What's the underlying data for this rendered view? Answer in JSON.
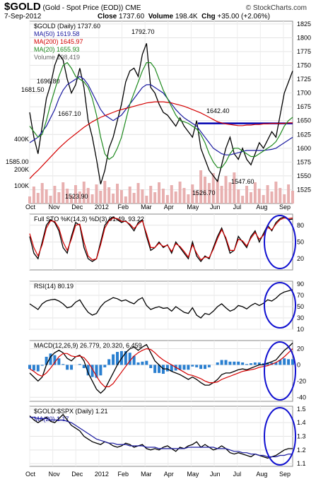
{
  "header": {
    "ticker": "$GOLD",
    "subtitle": "(Gold - Spot Price (EOD)) CME",
    "date": "7-Sep-2012",
    "close_label": "Close",
    "close": "1737.60",
    "volume_label": "Volume",
    "volume": "198.4K",
    "chg_label": "Chg",
    "chg": "+35.00 (+2.06%)",
    "brand": "© StockCharts.com"
  },
  "colors": {
    "price": "#000000",
    "ma50": "#1a1aa0",
    "ma200": "#d40000",
    "ma20": "#1f8a1f",
    "volume": "#e8b0b0",
    "circle": "#1010d0",
    "hline": "#0000b0",
    "macd_hist": "#2a7fd0"
  },
  "x_axis": [
    "Oct",
    "Nov",
    "Dec",
    "2012",
    "Feb",
    "Mar",
    "Apr",
    "May",
    "Jun",
    "Jul",
    "Aug",
    "Sep"
  ],
  "chart_data": [
    {
      "type": "line",
      "panel": "price",
      "legend": [
        {
          "key": "price",
          "text": "$GOLD (Daily) 1737.60"
        },
        {
          "key": "ma50",
          "text": "MA(50) 1619.58"
        },
        {
          "key": "ma200",
          "text": "MA(200) 1645.97"
        },
        {
          "key": "ma20",
          "text": "MA(20) 1655.93"
        },
        {
          "key": "volume",
          "text": "Volume 198,419"
        }
      ],
      "ylim": [
        1500,
        1830
      ],
      "yticks": [
        "1825",
        "1800",
        "1775",
        "1750",
        "1725",
        "1700",
        "1675",
        "1650",
        "1625",
        "1600",
        "1575",
        "1550",
        "1525"
      ],
      "volume_ticks": [
        "400K",
        "200K",
        "100K"
      ],
      "annotations": [
        "1792.70",
        "1696.80",
        "1681.50",
        "1667.10",
        "1642.40",
        "1585.00",
        "1523.90",
        "1526.70",
        "1547.60"
      ],
      "support_level": 1645,
      "series": [
        {
          "name": "$GOLD",
          "values": [
            1665,
            1620,
            1590,
            1640,
            1690,
            1715,
            1750,
            1770,
            1760,
            1725,
            1700,
            1715,
            1745,
            1710,
            1650,
            1620,
            1580,
            1535,
            1560,
            1600,
            1620,
            1650,
            1680,
            1720,
            1740,
            1745,
            1730,
            1770,
            1790,
            1710,
            1700,
            1680,
            1665,
            1660,
            1650,
            1640,
            1655,
            1640,
            1630,
            1620,
            1650,
            1600,
            1580,
            1560,
            1550,
            1540,
            1570,
            1600,
            1620,
            1590,
            1580,
            1600,
            1580,
            1570,
            1590,
            1610,
            1600,
            1615,
            1630,
            1620,
            1660,
            1700,
            1720,
            1740
          ]
        },
        {
          "name": "MA(50)",
          "values": [
            1610,
            1615,
            1620,
            1630,
            1640,
            1655,
            1670,
            1690,
            1705,
            1715,
            1720,
            1725,
            1730,
            1725,
            1715,
            1700,
            1685,
            1670,
            1660,
            1655,
            1650,
            1655,
            1660,
            1670,
            1680,
            1690,
            1700,
            1710,
            1715,
            1715,
            1710,
            1705,
            1700,
            1690,
            1680,
            1670,
            1662,
            1655,
            1650,
            1645,
            1640,
            1630,
            1620,
            1610,
            1600,
            1595,
            1590,
            1588,
            1588,
            1590,
            1592,
            1594,
            1596,
            1596,
            1596,
            1596,
            1596,
            1597,
            1598,
            1600,
            1605,
            1610,
            1615,
            1620
          ]
        },
        {
          "name": "MA(200)",
          "values": [
            1545,
            1553,
            1560,
            1568,
            1576,
            1584,
            1592,
            1600,
            1607,
            1614,
            1620,
            1626,
            1632,
            1638,
            1643,
            1648,
            1652,
            1656,
            1659,
            1662,
            1665,
            1668,
            1670,
            1672,
            1674,
            1676,
            1678,
            1680,
            1682,
            1683,
            1684,
            1684,
            1684,
            1683,
            1682,
            1680,
            1678,
            1676,
            1673,
            1670,
            1667,
            1664,
            1660,
            1656,
            1652,
            1648,
            1646,
            1644,
            1643,
            1642,
            1641,
            1641,
            1642,
            1642,
            1643,
            1643,
            1644,
            1644,
            1645,
            1645,
            1645,
            1645,
            1646,
            1646
          ]
        },
        {
          "name": "MA(20)",
          "values": [
            1640,
            1630,
            1620,
            1625,
            1650,
            1680,
            1705,
            1730,
            1750,
            1755,
            1745,
            1730,
            1725,
            1720,
            1710,
            1690,
            1660,
            1620,
            1590,
            1580,
            1585,
            1600,
            1620,
            1650,
            1680,
            1700,
            1720,
            1740,
            1755,
            1755,
            1745,
            1725,
            1705,
            1690,
            1675,
            1660,
            1650,
            1648,
            1645,
            1640,
            1635,
            1625,
            1610,
            1590,
            1575,
            1565,
            1565,
            1575,
            1590,
            1600,
            1600,
            1595,
            1590,
            1585,
            1585,
            1590,
            1595,
            1600,
            1605,
            1612,
            1625,
            1640,
            1650,
            1656
          ]
        }
      ]
    },
    {
      "type": "line",
      "panel": "stochastic",
      "legend_text": "Full STO %K(14,3) %D(3) 91.49, 93.22",
      "ylim": [
        0,
        100
      ],
      "yticks": [
        "80",
        "50",
        "20"
      ],
      "series": [
        {
          "name": "%K",
          "values": [
            60,
            30,
            20,
            50,
            80,
            90,
            85,
            70,
            40,
            30,
            60,
            85,
            80,
            40,
            20,
            15,
            20,
            50,
            80,
            90,
            95,
            90,
            85,
            88,
            80,
            70,
            85,
            90,
            60,
            35,
            40,
            50,
            40,
            45,
            30,
            50,
            40,
            30,
            20,
            50,
            25,
            15,
            25,
            20,
            40,
            60,
            75,
            55,
            30,
            35,
            60,
            50,
            40,
            60,
            70,
            50,
            65,
            80,
            70,
            85,
            92,
            95,
            90,
            91
          ]
        },
        {
          "name": "%D",
          "values": [
            65,
            40,
            25,
            45,
            75,
            88,
            87,
            75,
            50,
            35,
            55,
            80,
            82,
            50,
            25,
            18,
            20,
            45,
            75,
            88,
            93,
            92,
            87,
            87,
            82,
            74,
            82,
            88,
            65,
            40,
            40,
            48,
            42,
            44,
            33,
            47,
            42,
            33,
            23,
            45,
            30,
            18,
            23,
            22,
            37,
            56,
            72,
            58,
            35,
            35,
            55,
            52,
            43,
            57,
            67,
            55,
            62,
            76,
            72,
            82,
            90,
            93,
            92,
            93
          ]
        }
      ]
    },
    {
      "type": "line",
      "panel": "rsi",
      "legend_text": "RSI(14) 80.19",
      "ylim": [
        10,
        95
      ],
      "yticks": [
        "90",
        "70",
        "50",
        "30",
        "10"
      ],
      "series": [
        {
          "name": "RSI(14)",
          "values": [
            55,
            50,
            45,
            55,
            60,
            62,
            63,
            60,
            55,
            48,
            50,
            58,
            62,
            50,
            40,
            35,
            38,
            50,
            58,
            62,
            66,
            64,
            60,
            62,
            58,
            55,
            62,
            66,
            52,
            45,
            48,
            50,
            47,
            48,
            42,
            50,
            45,
            40,
            38,
            48,
            35,
            30,
            38,
            36,
            42,
            50,
            55,
            48,
            42,
            45,
            52,
            50,
            46,
            52,
            56,
            52,
            56,
            62,
            60,
            65,
            72,
            76,
            78,
            80
          ]
        }
      ]
    },
    {
      "type": "line",
      "panel": "macd",
      "legend_text": "MACD(12,26,9) 26.779, 20.320, 6.459",
      "ylim": [
        -45,
        30
      ],
      "yticks": [
        "20",
        "0",
        "-20",
        "-40"
      ],
      "series": [
        {
          "name": "MACD",
          "values": [
            -10,
            -15,
            -20,
            -15,
            0,
            10,
            15,
            18,
            15,
            8,
            5,
            10,
            12,
            5,
            -10,
            -20,
            -30,
            -35,
            -30,
            -20,
            -10,
            0,
            8,
            15,
            20,
            22,
            18,
            22,
            25,
            15,
            5,
            0,
            -5,
            -5,
            -8,
            -10,
            -12,
            -15,
            -18,
            -15,
            -18,
            -22,
            -25,
            -25,
            -22,
            -18,
            -12,
            -10,
            -10,
            -8,
            -6,
            -5,
            -6,
            -4,
            -2,
            0,
            0,
            2,
            4,
            6,
            12,
            18,
            22,
            27
          ]
        },
        {
          "name": "Signal",
          "values": [
            -5,
            -8,
            -12,
            -14,
            -10,
            -4,
            3,
            10,
            14,
            14,
            11,
            10,
            11,
            9,
            3,
            -5,
            -14,
            -22,
            -27,
            -27,
            -23,
            -16,
            -9,
            -2,
            5,
            11,
            15,
            18,
            20,
            19,
            15,
            10,
            6,
            3,
            0,
            -3,
            -6,
            -9,
            -12,
            -13,
            -15,
            -17,
            -20,
            -22,
            -22,
            -21,
            -18,
            -16,
            -14,
            -12,
            -10,
            -8,
            -7,
            -6,
            -5,
            -3,
            -2,
            -1,
            1,
            3,
            6,
            10,
            15,
            20
          ]
        }
      ]
    },
    {
      "type": "line",
      "panel": "ratio",
      "legend": [
        {
          "key": "price",
          "text": "$GOLD:$SPX (Daily) 1.21"
        },
        {
          "key": "ma50",
          "text": "MA(20) 1.17"
        }
      ],
      "ylim": [
        1.08,
        1.52
      ],
      "yticks": [
        "1.5",
        "1.4",
        "1.3",
        "1.2",
        "1.1"
      ],
      "series": [
        {
          "name": "$GOLD:$SPX",
          "values": [
            1.45,
            1.42,
            1.4,
            1.42,
            1.44,
            1.41,
            1.4,
            1.43,
            1.46,
            1.42,
            1.38,
            1.36,
            1.34,
            1.3,
            1.28,
            1.26,
            1.25,
            1.24,
            1.26,
            1.25,
            1.23,
            1.22,
            1.23,
            1.25,
            1.24,
            1.22,
            1.23,
            1.24,
            1.21,
            1.2,
            1.21,
            1.2,
            1.22,
            1.23,
            1.21,
            1.19,
            1.22,
            1.21,
            1.23,
            1.24,
            1.26,
            1.22,
            1.24,
            1.22,
            1.2,
            1.21,
            1.23,
            1.21,
            1.18,
            1.17,
            1.18,
            1.17,
            1.16,
            1.15,
            1.17,
            1.16,
            1.15,
            1.14,
            1.15,
            1.16,
            1.18,
            1.2,
            1.21,
            1.21
          ]
        },
        {
          "name": "MA(20)",
          "values": [
            1.44,
            1.44,
            1.43,
            1.43,
            1.43,
            1.42,
            1.42,
            1.42,
            1.42,
            1.41,
            1.4,
            1.38,
            1.36,
            1.34,
            1.32,
            1.3,
            1.28,
            1.27,
            1.26,
            1.25,
            1.25,
            1.24,
            1.24,
            1.24,
            1.23,
            1.23,
            1.23,
            1.23,
            1.22,
            1.22,
            1.22,
            1.21,
            1.21,
            1.21,
            1.21,
            1.21,
            1.21,
            1.21,
            1.22,
            1.22,
            1.22,
            1.22,
            1.22,
            1.22,
            1.22,
            1.21,
            1.21,
            1.21,
            1.2,
            1.19,
            1.19,
            1.18,
            1.18,
            1.17,
            1.17,
            1.16,
            1.16,
            1.15,
            1.15,
            1.15,
            1.16,
            1.16,
            1.17,
            1.17
          ]
        }
      ]
    }
  ]
}
